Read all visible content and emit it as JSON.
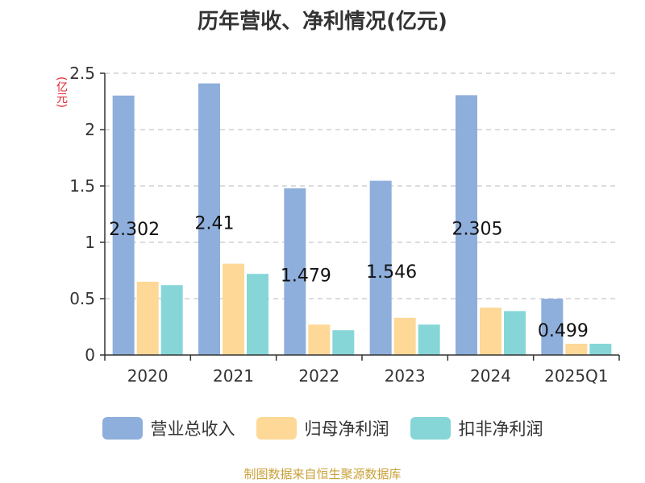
{
  "chart_data": {
    "type": "bar",
    "title": "历年营收、净利情况(亿元)",
    "unit_label": "(亿元)",
    "categories": [
      "2020",
      "2021",
      "2022",
      "2023",
      "2024",
      "2025Q1"
    ],
    "ylim": [
      0,
      2.5
    ],
    "yticks": [
      "0",
      "0.5",
      "1",
      "1.5",
      "2",
      "2.5"
    ],
    "grid": true,
    "legend_position": "bottom",
    "series": [
      {
        "name": "营业总收入",
        "color": "#8eaedb",
        "values": [
          2.302,
          2.41,
          1.479,
          1.546,
          2.305,
          0.499
        ],
        "labels": [
          "2.302",
          "2.41",
          "1.479",
          "1.546",
          "2.305",
          "0.499"
        ]
      },
      {
        "name": "归母净利润",
        "color": "#fdd897",
        "values": [
          0.65,
          0.81,
          0.27,
          0.33,
          0.42,
          0.1
        ]
      },
      {
        "name": "扣非净利润",
        "color": "#86d6d8",
        "values": [
          0.62,
          0.72,
          0.22,
          0.27,
          0.39,
          0.1
        ]
      }
    ],
    "source": "制图数据来自恒生聚源数据库"
  }
}
